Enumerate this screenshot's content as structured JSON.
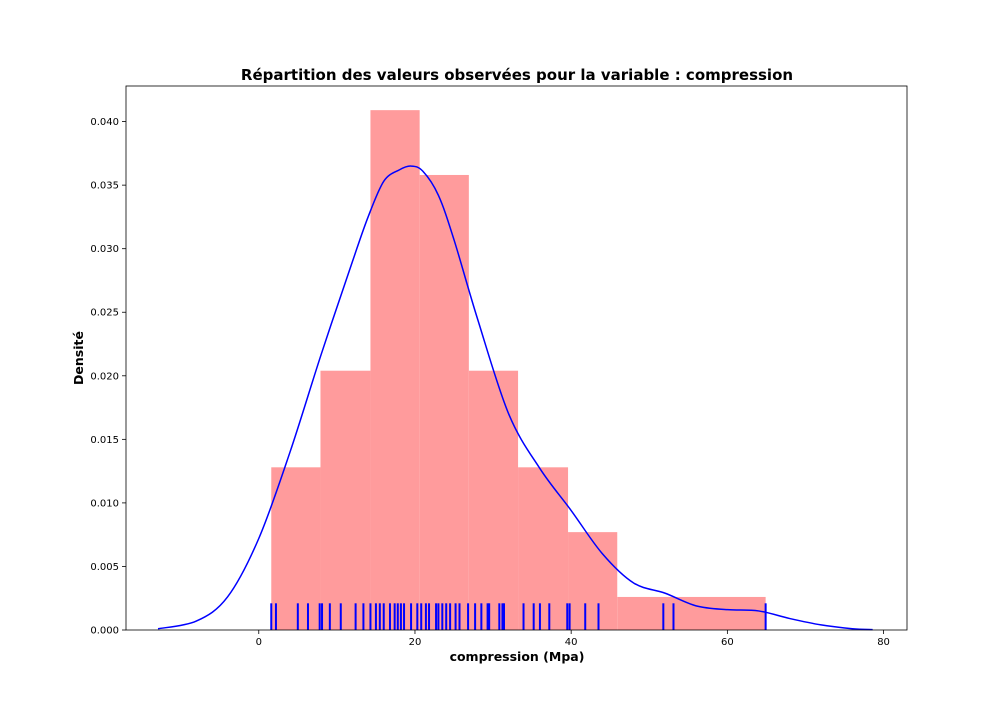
{
  "chart_data": {
    "type": "bar",
    "title": "Répartition des valeurs observées pour la variable : compression",
    "xlabel": "compression (Mpa)",
    "ylabel": "Densité",
    "xlim": [
      -17,
      83
    ],
    "ylim": [
      0,
      0.0428
    ],
    "xticks": [
      0,
      20,
      40,
      60,
      80
    ],
    "xtick_labels": [
      "0",
      "20",
      "40",
      "60",
      "80"
    ],
    "yticks": [
      0,
      0.005,
      0.01,
      0.015,
      0.02,
      0.025,
      0.03,
      0.035,
      0.04
    ],
    "ytick_labels": [
      "0.000",
      "0.005",
      "0.010",
      "0.015",
      "0.020",
      "0.025",
      "0.030",
      "0.035",
      "0.040"
    ],
    "grid": false,
    "series": [
      {
        "type": "histogram",
        "color": "#ff9b9c",
        "bins": [
          {
            "x0": 1.6,
            "x1": 7.9,
            "density": 0.0128
          },
          {
            "x0": 7.9,
            "x1": 14.3,
            "density": 0.0204
          },
          {
            "x0": 14.3,
            "x1": 20.6,
            "density": 0.0409
          },
          {
            "x0": 20.6,
            "x1": 26.9,
            "density": 0.0358
          },
          {
            "x0": 26.9,
            "x1": 33.2,
            "density": 0.0204
          },
          {
            "x0": 33.2,
            "x1": 39.6,
            "density": 0.0128
          },
          {
            "x0": 39.6,
            "x1": 45.9,
            "density": 0.0077
          },
          {
            "x0": 45.9,
            "x1": 64.9,
            "density": 0.0026
          }
        ]
      },
      {
        "type": "line",
        "color": "#0000ff",
        "x": [
          -12.9,
          -8,
          -4,
          0,
          4,
          8,
          12,
          14,
          16,
          18,
          19.5,
          21,
          23,
          25,
          28,
          32,
          36,
          40,
          44,
          48,
          52,
          56,
          60,
          64,
          68,
          72,
          76,
          78.6
        ],
        "y": [
          0.0001,
          0.0007,
          0.0026,
          0.0072,
          0.014,
          0.0217,
          0.029,
          0.0325,
          0.0353,
          0.0362,
          0.0365,
          0.0361,
          0.0342,
          0.0307,
          0.0245,
          0.017,
          0.0127,
          0.0094,
          0.006,
          0.0037,
          0.0029,
          0.0019,
          0.0016,
          0.0015,
          0.0009,
          0.0004,
          0.0001,
          3e-05
        ]
      },
      {
        "type": "rug",
        "color": "#0000ff",
        "height": 0.0021,
        "values": [
          1.6,
          2.2,
          5.0,
          6.3,
          7.8,
          8.1,
          9.1,
          10.5,
          12.4,
          13.4,
          14.3,
          15.0,
          15.5,
          16.0,
          16.8,
          17.4,
          17.8,
          18.2,
          18.6,
          19.5,
          20.3,
          20.8,
          21.4,
          21.8,
          22.7,
          23.0,
          23.5,
          24.0,
          24.5,
          25.2,
          25.7,
          26.8,
          27.7,
          28.5,
          29.3,
          29.5,
          30.8,
          31.2,
          31.4,
          33.9,
          35.2,
          36.0,
          37.2,
          39.5,
          39.8,
          41.8,
          43.5,
          51.8,
          53.1,
          64.9
        ]
      }
    ]
  }
}
